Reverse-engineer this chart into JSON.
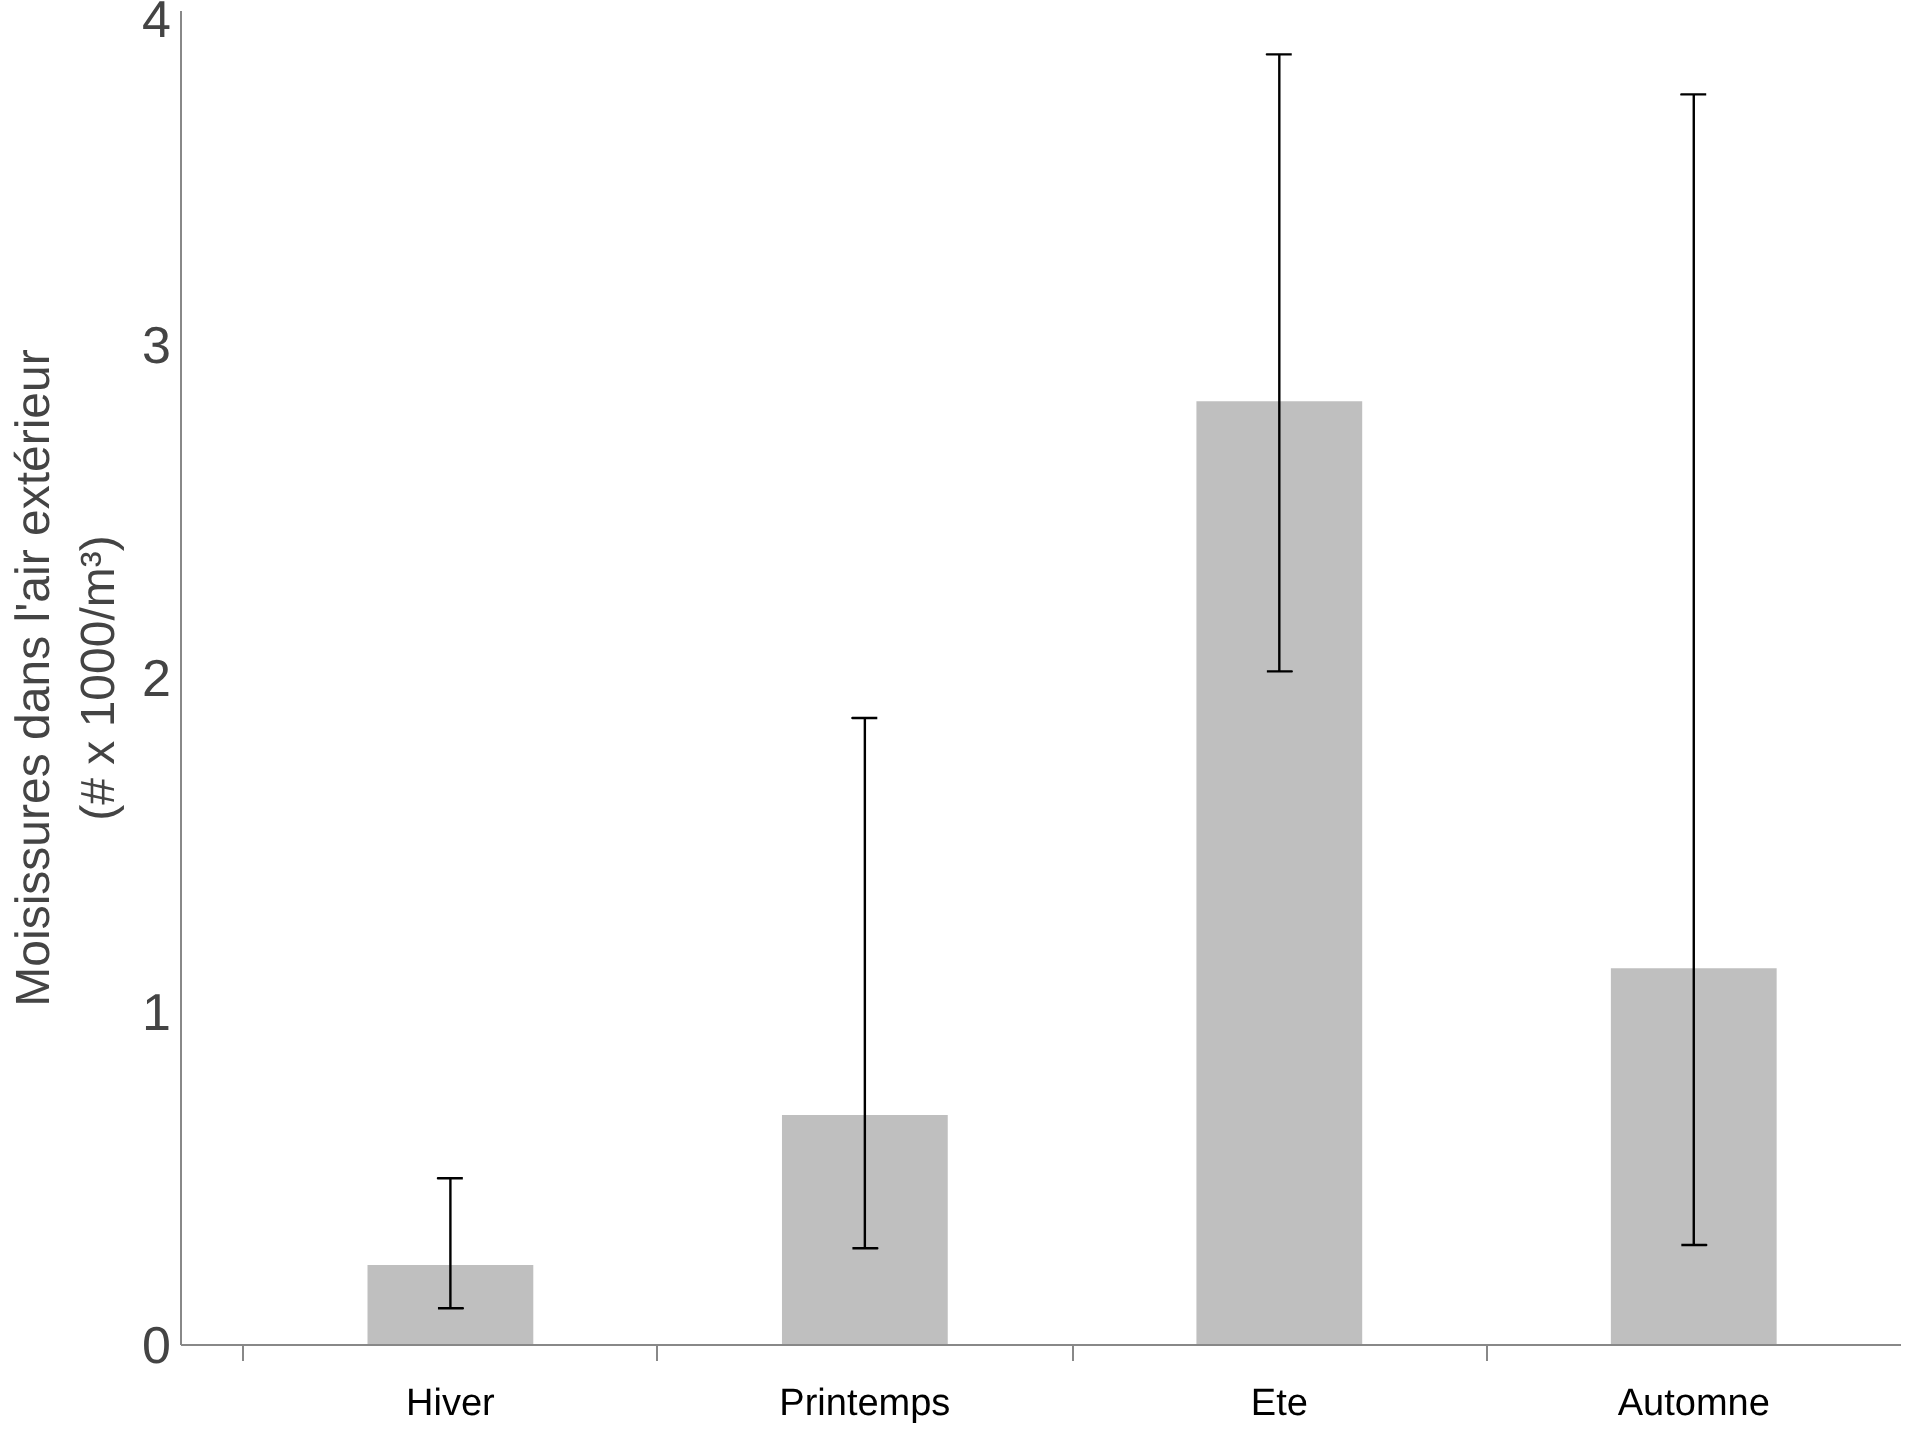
{
  "chart_data": {
    "type": "bar",
    "ylabel": "Moisissures dans l'air extérieur\n(# x 1000/m³)",
    "categories": [
      "Hiver",
      "Printemps",
      "Ete",
      "Automne"
    ],
    "values": [
      0.24,
      0.69,
      2.83,
      1.13
    ],
    "errors": [
      [
        0.11,
        0.5
      ],
      [
        0.29,
        1.88
      ],
      [
        2.02,
        3.87
      ],
      [
        0.3,
        3.75
      ]
    ],
    "color": "#bfbfbf",
    "ylim": [
      0,
      4
    ],
    "yticks": [
      0,
      1,
      2,
      3,
      4
    ],
    "grid": false
  }
}
